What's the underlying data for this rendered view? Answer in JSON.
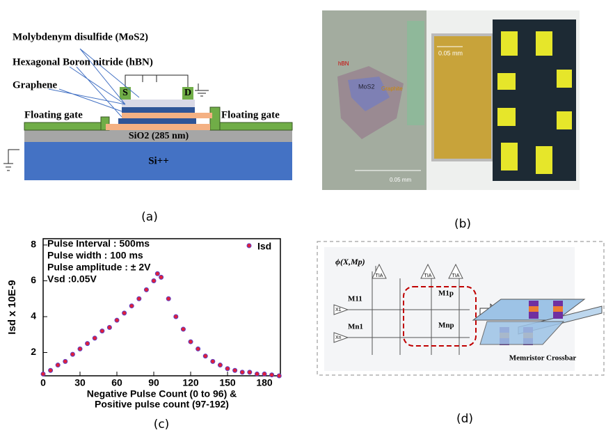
{
  "chart_data": {
    "type": "scatter",
    "x_label": [
      "Negative Pulse Count (0 to 96)  &",
      "Positive pulse count (97-192)"
    ],
    "y_label": "Isd x 10E-9",
    "annotations": [
      "Pulse Interval : 500ms",
      "Pulse width    : 100 ms",
      "Pulse amplitude : ± 2V",
      "Vsd :0.05V"
    ],
    "x": [
      0,
      6,
      12,
      18,
      24,
      30,
      36,
      42,
      48,
      54,
      60,
      66,
      72,
      78,
      84,
      90,
      93,
      96,
      102,
      108,
      114,
      120,
      126,
      132,
      138,
      144,
      150,
      156,
      162,
      168,
      174,
      180,
      186,
      192
    ],
    "series": [
      {
        "name": "Isd",
        "color": "#e0203a",
        "values": [
          0.8,
          1.0,
          1.3,
          1.5,
          1.9,
          2.2,
          2.5,
          2.8,
          3.2,
          3.4,
          3.8,
          4.2,
          4.6,
          5.0,
          5.5,
          6.0,
          6.4,
          6.2,
          5.0,
          4.0,
          3.3,
          2.6,
          2.2,
          1.8,
          1.5,
          1.3,
          1.1,
          1.0,
          0.9,
          0.9,
          0.8,
          0.8,
          0.75,
          0.7
        ]
      }
    ],
    "xlim": [
      0,
      193
    ],
    "ylim": [
      0.7,
      8.35
    ],
    "xticks": [
      0,
      30,
      60,
      90,
      120,
      150,
      180
    ],
    "yticks": [
      2,
      4,
      6,
      8
    ],
    "legend": "upper right"
  },
  "panels": {
    "a": {
      "label": "(a)",
      "mos2": "Molybdenym disulfide (MoS2)",
      "hbn": "Hexagonal Boron nitride (hBN)",
      "graphene": "Graphene",
      "source": "S",
      "drain": "D",
      "gate_left": "Floating gate",
      "gate_right": "Floating gate",
      "sio2": "SiO2 (285 nm)",
      "si": "Si++"
    },
    "b": {
      "label": "(b)",
      "hbn": "hBN",
      "mos2": "MoS2",
      "graphite": "Graphite",
      "scale_top": "0.05 mm",
      "scale_bottom": "0.05 mm"
    },
    "c": {
      "label": "(c)"
    },
    "d": {
      "label": "(d)",
      "phi": "ϕ(X,Mp)",
      "tia": [
        "TIA",
        "TIA",
        "TIA"
      ],
      "m11": "M11",
      "m1p": "M1p",
      "mn1": "Mn1",
      "mnp": "Mnp",
      "x1": "X1",
      "xn": "Xn",
      "crossbar": "Memristor Crossbar"
    }
  }
}
